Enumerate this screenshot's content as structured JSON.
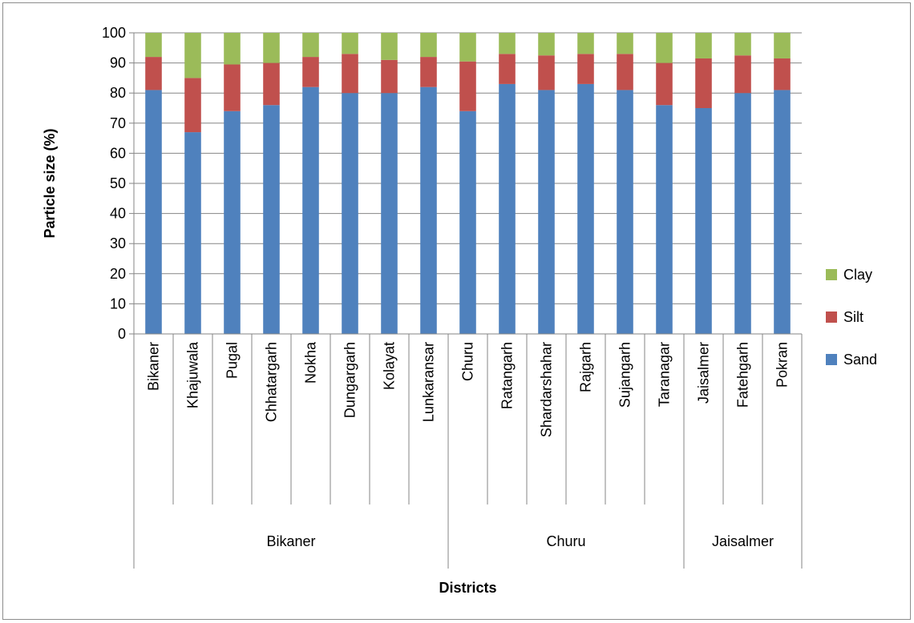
{
  "chart_data": {
    "type": "bar",
    "stacked": true,
    "title": "",
    "xlabel": "Districts",
    "ylabel": "Particle size (%)",
    "ylim": [
      0,
      100
    ],
    "yticks": [
      0,
      10,
      20,
      30,
      40,
      50,
      60,
      70,
      80,
      90,
      100
    ],
    "grid": true,
    "legend_position": "right",
    "categories": [
      "Bikaner",
      "Khajuwala",
      "Pugal",
      "Chhatargarh",
      "Nokha",
      "Dungargarh",
      "Kolayat",
      "Lunkaransar",
      "Churu",
      "Ratangarh",
      "Shardarshahar",
      "Rajgarh",
      "Sujangarh",
      "Taranagar",
      "Jaisalmer",
      "Fatehgarh",
      "Pokran"
    ],
    "groups": [
      {
        "label": "Bikaner",
        "count": 8
      },
      {
        "label": "Churu",
        "count": 6
      },
      {
        "label": "Jaisalmer",
        "count": 3
      }
    ],
    "series": [
      {
        "name": "Sand",
        "color": "#4f81bd",
        "values": [
          81,
          67,
          74,
          76,
          82,
          80,
          80,
          82,
          74,
          83,
          81,
          83,
          81,
          76,
          75,
          80,
          81
        ]
      },
      {
        "name": "Silt",
        "color": "#c0504d",
        "values": [
          11,
          18,
          15.5,
          14,
          10,
          13,
          11,
          10,
          16.5,
          10,
          11.5,
          10,
          12,
          14,
          16.5,
          12.5,
          10.5
        ]
      },
      {
        "name": "Clay",
        "color": "#9bbb59",
        "values": [
          8,
          15,
          10.5,
          10,
          8,
          7,
          9,
          8,
          9.5,
          7,
          7.5,
          7,
          7,
          10,
          8.5,
          7.5,
          8.5
        ]
      }
    ],
    "legend_order": [
      "Clay",
      "Silt",
      "Sand"
    ]
  }
}
